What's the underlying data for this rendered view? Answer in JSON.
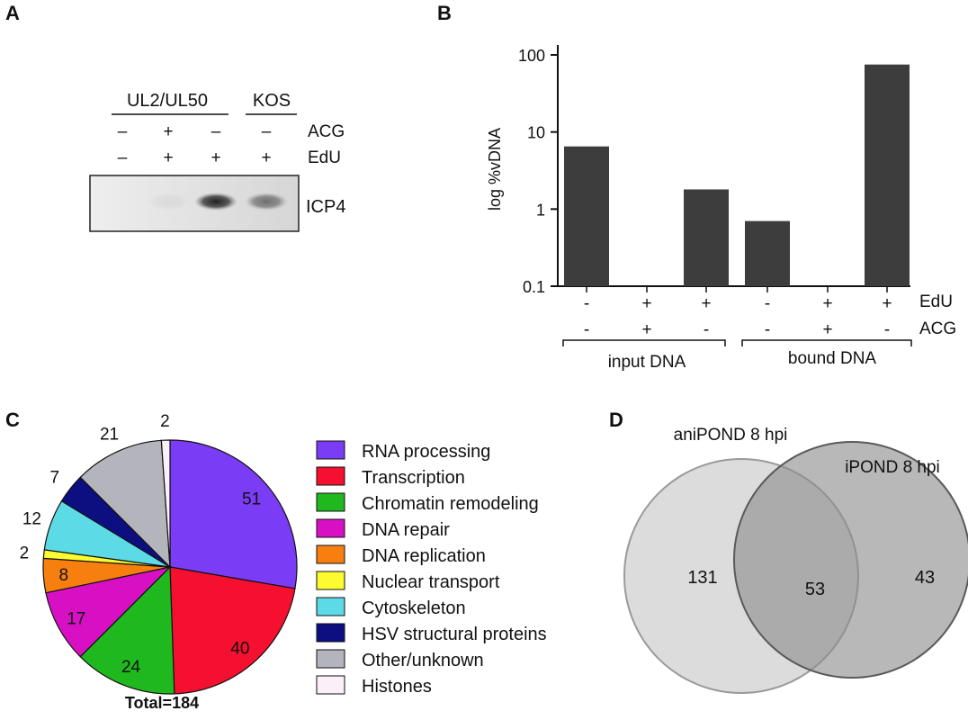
{
  "panels": {
    "a": {
      "letter": "A",
      "group1": "UL2/UL50",
      "group2": "KOS",
      "row1_label": "ACG",
      "row2_label": "EdU",
      "acg_signs": [
        "–",
        "+",
        "–",
        "–"
      ],
      "edu_signs": [
        "–",
        "+",
        "+",
        "+"
      ],
      "band_label": "ICP4",
      "band_intensity": [
        0.0,
        0.05,
        0.95,
        0.55
      ]
    },
    "b": {
      "letter": "B",
      "group1": "input DNA",
      "group2": "bound DNA"
    },
    "c": {
      "letter": "C",
      "total_label": "Total=184"
    },
    "d": {
      "letter": "D",
      "set1_label": "aniPOND 8 hpi",
      "set2_label": "iPOND 8 hpi",
      "only1": "131",
      "both": "53",
      "only2": "43"
    }
  },
  "chart_data": [
    {
      "type": "bar",
      "panel": "B",
      "ylabel": "log %vDNA",
      "yscale": "log",
      "ylim": [
        0.1,
        100
      ],
      "yticks": [
        "0.1",
        "1",
        "10",
        "100"
      ],
      "edu_label": "EdU",
      "acg_label": "ACG",
      "edu_signs": [
        "-",
        "+",
        "+",
        "-",
        "+",
        "+"
      ],
      "acg_signs": [
        "-",
        "+",
        "-",
        "-",
        "+",
        "-"
      ],
      "values": [
        6.5,
        0.1,
        1.8,
        0.7,
        0.1,
        75
      ],
      "color": "#3d3d3d"
    },
    {
      "type": "pie",
      "panel": "C",
      "labels": [
        "RNA processing",
        "Transcription",
        "Chromatin remodeling",
        "DNA repair",
        "DNA replication",
        "Nuclear transport",
        "Cytoskeleton",
        "HSV structural proteins",
        "Other/unknown",
        "Histones"
      ],
      "values": [
        51,
        40,
        24,
        17,
        8,
        2,
        12,
        7,
        21,
        2
      ],
      "value_labels": [
        "51",
        "40",
        "24",
        "17",
        "8",
        "2",
        "12",
        "7",
        "21",
        "2"
      ],
      "colors": [
        "#7b3cf5",
        "#f5102f",
        "#20b81f",
        "#d711c3",
        "#f77f10",
        "#fbfb30",
        "#5cdbe7",
        "#0d0f80",
        "#b4b4bd",
        "#fbf0fa"
      ],
      "legend": "right"
    }
  ]
}
